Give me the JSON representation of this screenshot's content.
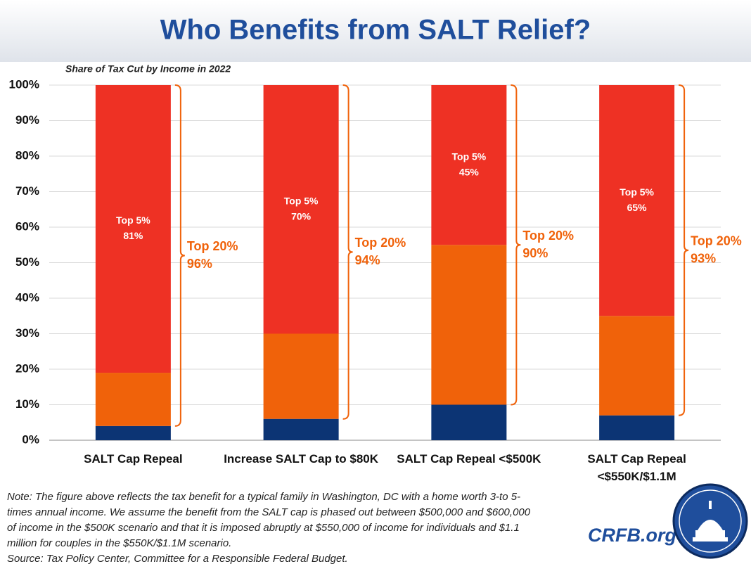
{
  "chart_data": {
    "type": "stacked_bar",
    "title": "Who Benefits from SALT Relief?",
    "subtitle": "Share of Tax Cut by Income in 2022",
    "categories": [
      "SALT Cap Repeal",
      "Increase SALT Cap to $80K",
      "SALT Cap Repeal <$500K",
      "SALT Cap Repeal <$550K/$1.1M"
    ],
    "series": [
      {
        "color": "#0c3474",
        "values": [
          4,
          6,
          10,
          7
        ]
      },
      {
        "color": "#f0620a",
        "values": [
          15,
          24,
          45,
          28
        ]
      },
      {
        "name": "Top 5%",
        "color": "#ee3124",
        "values": [
          81,
          70,
          45,
          65
        ],
        "value_labels": [
          "81%",
          "70%",
          "45%",
          "65%"
        ]
      }
    ],
    "bracket": {
      "label": "Top 20%",
      "color": "#f0620a",
      "values": [
        96,
        94,
        90,
        93
      ],
      "value_labels": [
        "96%",
        "94%",
        "90%",
        "93%"
      ]
    },
    "ylim": [
      0,
      100
    ],
    "yticks": [
      {
        "value": 0,
        "label": "0%"
      },
      {
        "value": 10,
        "label": "10%"
      },
      {
        "value": 20,
        "label": "20%"
      },
      {
        "value": 30,
        "label": "30%"
      },
      {
        "value": 40,
        "label": "40%"
      },
      {
        "value": 50,
        "label": "50%"
      },
      {
        "value": 60,
        "label": "60%"
      },
      {
        "value": 70,
        "label": "70%"
      },
      {
        "value": 80,
        "label": "80%"
      },
      {
        "value": 90,
        "label": "90%"
      },
      {
        "value": 100,
        "label": "100%"
      }
    ],
    "grid": true,
    "note": [
      "Note: The figure above reflects the tax benefit for a typical family in Washington, DC with a home worth 3-to 5-",
      "times annual income. We assume the benefit from the SALT cap is phased out between $500,000 and $600,000",
      "of income in the $500K scenario and that it is imposed abruptly at $550,000 of income for individuals and $1.1",
      "million for couples in the $550K/$1.1M scenario."
    ],
    "source": "Source: Tax Policy Center, Committee for a Responsible Federal Budget.",
    "brand": "CRFB.org"
  }
}
